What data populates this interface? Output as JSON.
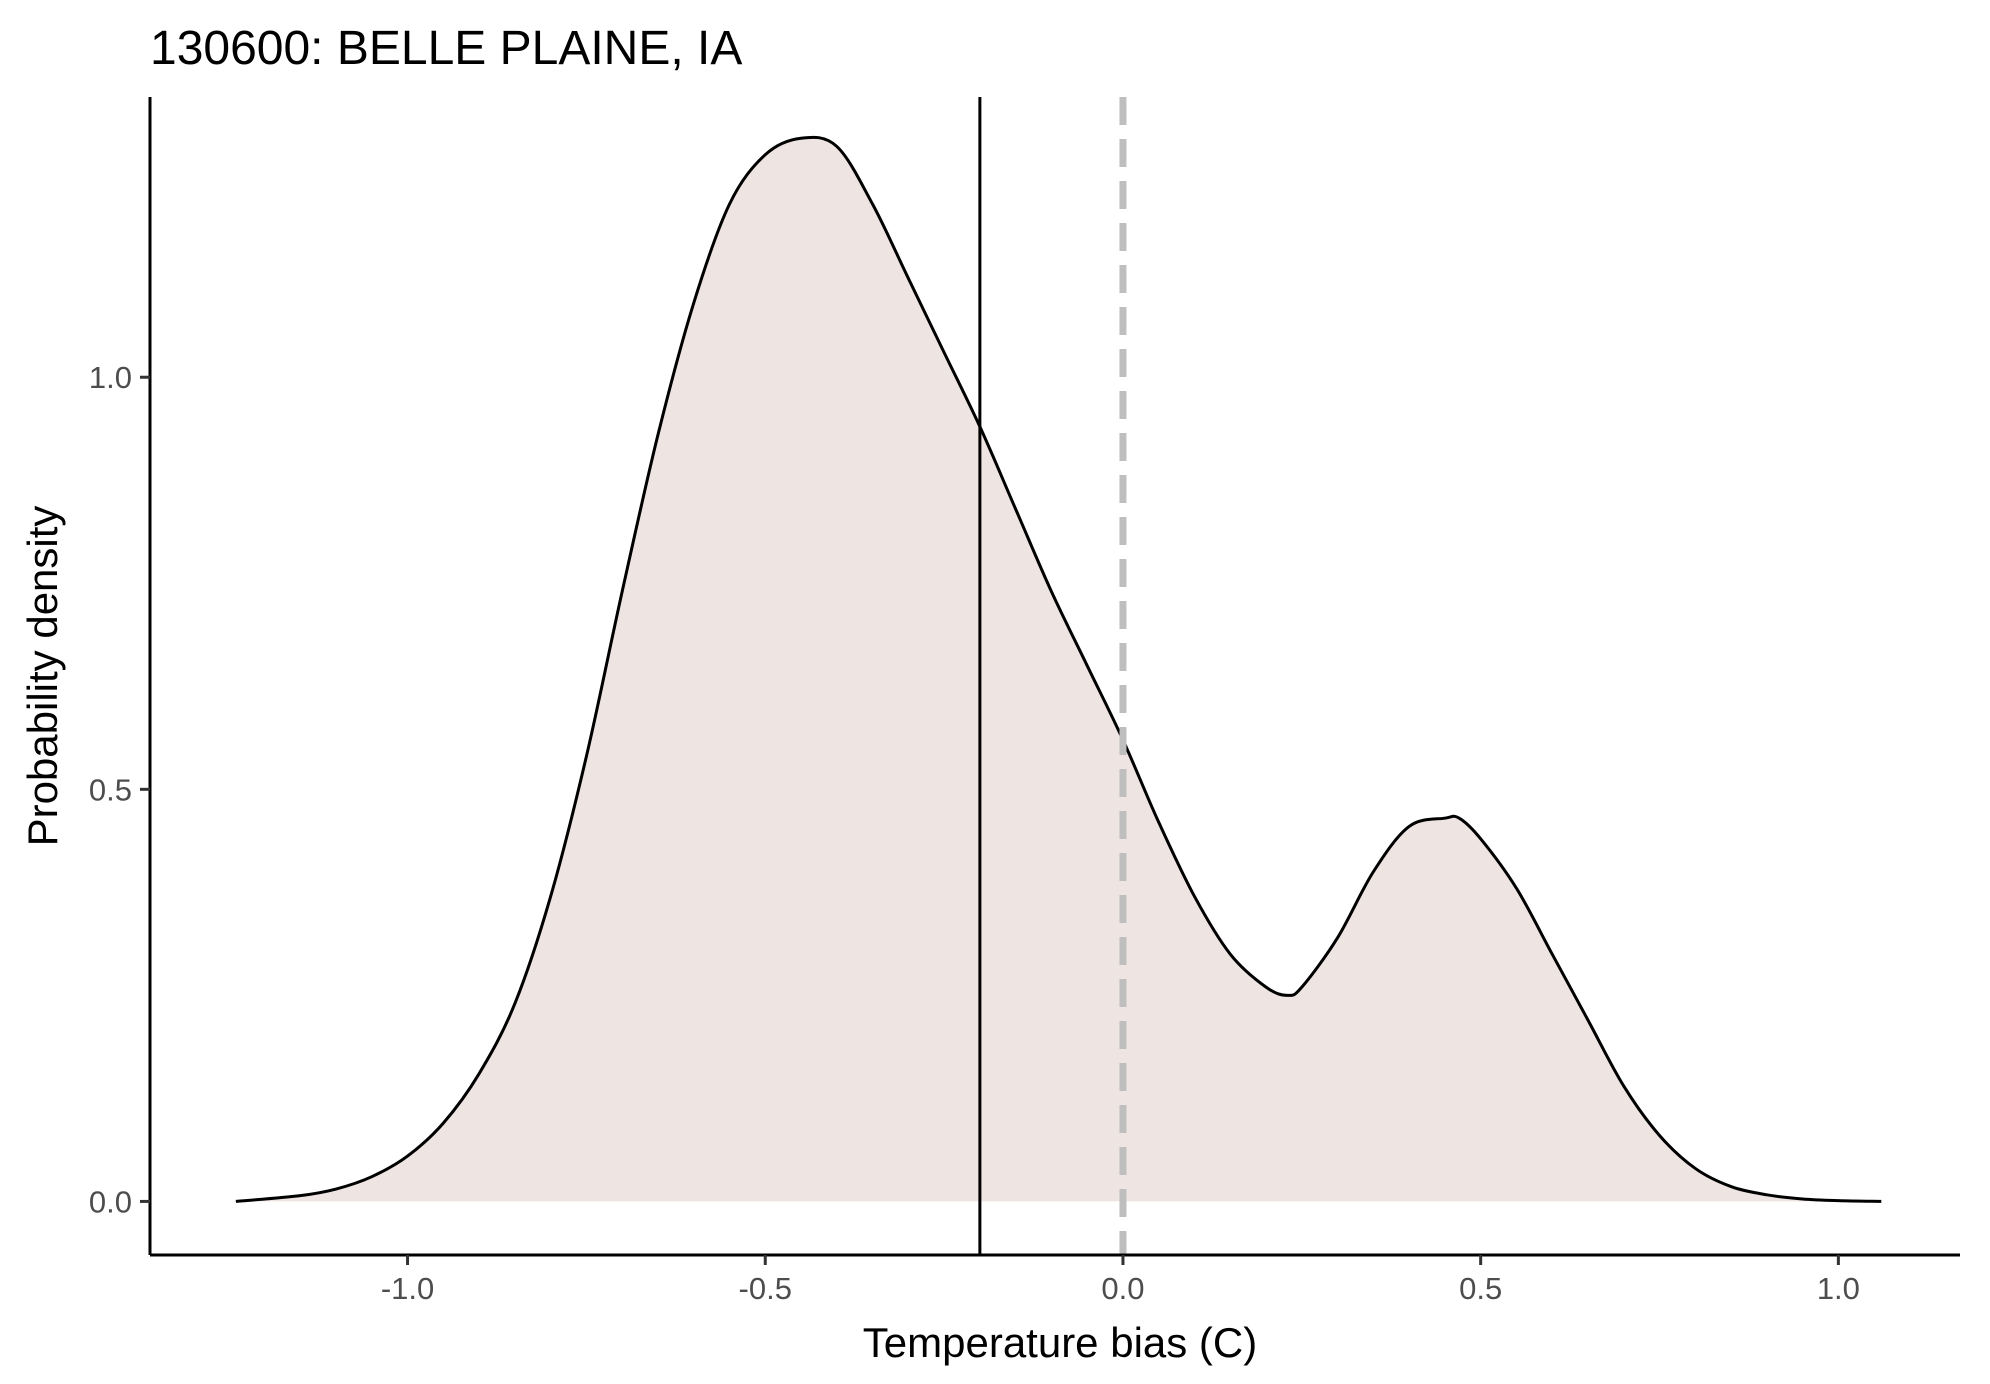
{
  "chart_data": {
    "type": "area",
    "title": "130600: BELLE PLAINE, IA",
    "xlabel": "Temperature bias (C)",
    "ylabel": "Probability density",
    "xlim": [
      -1.36,
      1.17
    ],
    "ylim": [
      -0.065,
      1.34
    ],
    "x_ticks": [
      -1.0,
      -0.5,
      0.0,
      0.5,
      1.0
    ],
    "x_tick_labels": [
      "-1.0",
      "-0.5",
      "0.0",
      "0.5",
      "1.0"
    ],
    "y_ticks": [
      0.0,
      0.5,
      1.0
    ],
    "y_tick_labels": [
      "0.0",
      "0.5",
      "1.0"
    ],
    "grid": false,
    "legend": "none",
    "density": {
      "x": [
        -1.24,
        -1.15,
        -1.1,
        -1.05,
        -1.0,
        -0.95,
        -0.9,
        -0.85,
        -0.8,
        -0.75,
        -0.7,
        -0.65,
        -0.6,
        -0.55,
        -0.5,
        -0.45,
        -0.4,
        -0.35,
        -0.3,
        -0.25,
        -0.2,
        -0.15,
        -0.1,
        -0.05,
        0.0,
        0.05,
        0.1,
        0.15,
        0.2,
        0.23,
        0.25,
        0.3,
        0.35,
        0.4,
        0.45,
        0.47,
        0.5,
        0.55,
        0.6,
        0.65,
        0.7,
        0.75,
        0.8,
        0.85,
        0.9,
        0.95,
        1.0,
        1.06
      ],
      "y": [
        0.0,
        0.007,
        0.015,
        0.03,
        0.055,
        0.095,
        0.155,
        0.24,
        0.37,
        0.54,
        0.74,
        0.93,
        1.09,
        1.21,
        1.27,
        1.29,
        1.28,
        1.21,
        1.12,
        1.03,
        0.94,
        0.84,
        0.74,
        0.65,
        0.56,
        0.46,
        0.37,
        0.3,
        0.26,
        0.25,
        0.26,
        0.32,
        0.4,
        0.455,
        0.465,
        0.465,
        0.44,
        0.38,
        0.3,
        0.22,
        0.14,
        0.08,
        0.04,
        0.018,
        0.008,
        0.003,
        0.001,
        0.0
      ]
    },
    "reference_lines": [
      {
        "x": -0.2,
        "style": "solid",
        "color": "#000000"
      },
      {
        "x": 0.0,
        "style": "dashed",
        "color": "#bebebe"
      }
    ],
    "fill_color": "#eee5e2",
    "line_color": "#000000"
  }
}
